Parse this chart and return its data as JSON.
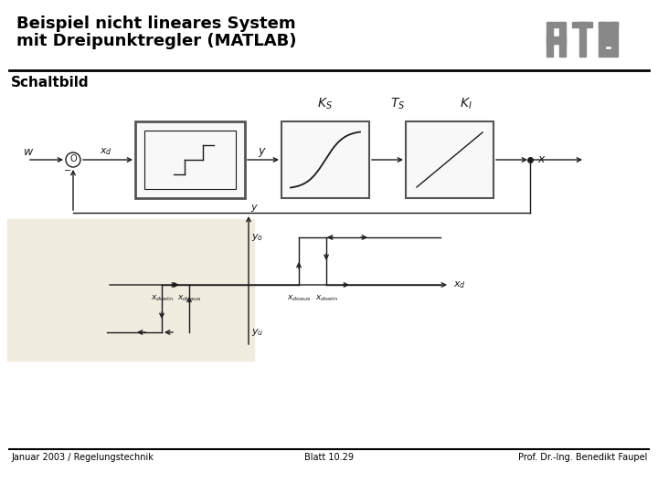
{
  "title_line1": "Beispiel nicht lineares System",
  "title_line2": "mit Dreipunktregler (MATLAB)",
  "subtitle": "Schaltbild",
  "footer_left": "Januar 2003 / Regelungstechnik",
  "footer_center": "Blatt 10.29",
  "footer_right": "Prof. Dr.-Ing. Benedikt Faupel",
  "bg_color": "#ffffff",
  "gray_color": "#888888",
  "line_color": "#1a1a1a",
  "light_bg": "#f0ece0",
  "title_fontsize": 13,
  "subtitle_fontsize": 11,
  "footer_fontsize": 7
}
